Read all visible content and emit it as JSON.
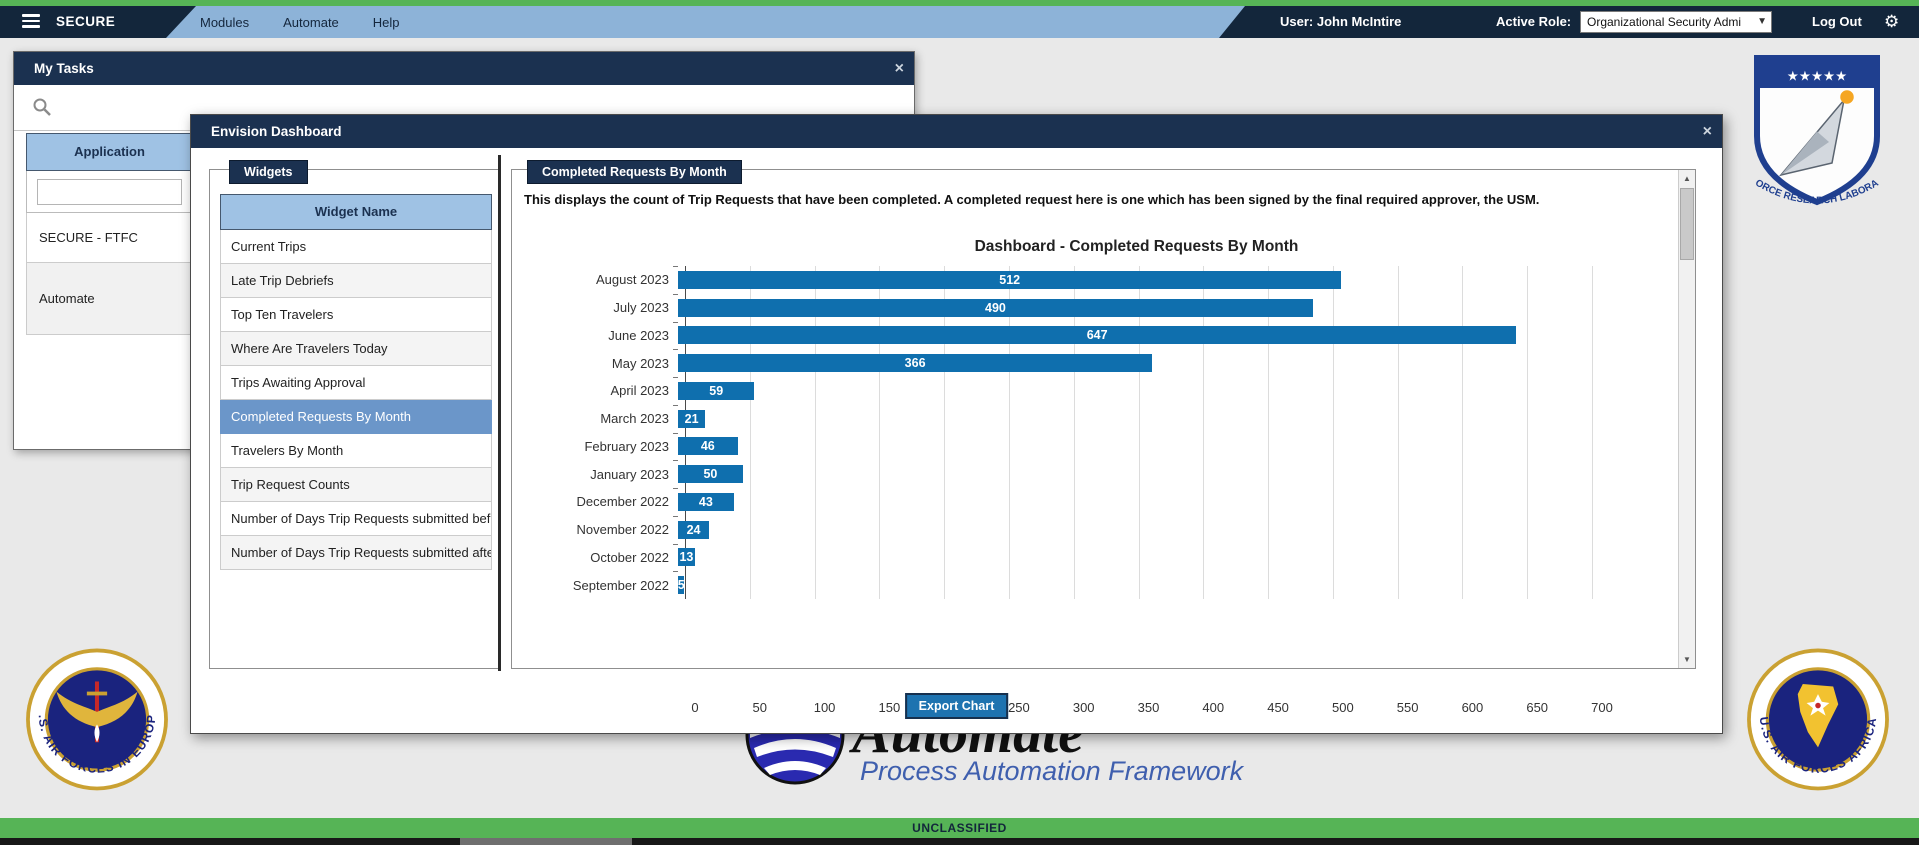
{
  "topbar": {
    "brand": "SECURE",
    "menu": [
      "Modules",
      "Automate",
      "Help"
    ],
    "user_label": "User:",
    "user_name": "John McIntire",
    "role_label": "Active Role:",
    "role_value": "Organizational Security Admi",
    "logout_label": "Log Out"
  },
  "my_tasks": {
    "title": "My Tasks",
    "close": "×",
    "column_header": "Application",
    "filter_value": "",
    "rows": [
      "SECURE - FTFC",
      "Automate"
    ]
  },
  "dashboard_modal": {
    "title": "Envision Dashboard",
    "close": "×",
    "widgets_panel": {
      "label": "Widgets",
      "table_header": "Widget Name",
      "selected": "Completed Requests By Month",
      "items": [
        "Current Trips",
        "Late Trip Debriefs",
        "Top Ten Travelers",
        "Where Are Travelers Today",
        "Trips Awaiting Approval",
        "Completed Requests By Month",
        "Travelers By Month",
        "Trip Request Counts",
        "Number of Days Trip Requests submitted bef",
        "Number of Days Trip Requests submitted afte"
      ]
    },
    "chart_panel": {
      "label": "Completed Requests By Month",
      "description": "This displays the count of Trip Requests that have been completed. A completed request here is one which has been signed by the final required approver, the USM.",
      "export_button": "Export Chart"
    }
  },
  "chart_data": {
    "type": "bar",
    "orientation": "horizontal",
    "title": "Dashboard - Completed Requests By Month",
    "categories": [
      "August 2023",
      "July 2023",
      "June 2023",
      "May 2023",
      "April 2023",
      "March 2023",
      "February 2023",
      "January 2023",
      "December 2022",
      "November 2022",
      "October 2022",
      "September 2022"
    ],
    "values": [
      512,
      490,
      647,
      366,
      59,
      21,
      46,
      50,
      43,
      24,
      13,
      5
    ],
    "xlim": [
      0,
      700
    ],
    "tick_step": 50,
    "bar_color": "#0f6fae",
    "grid": true,
    "value_label_position": "inside-center",
    "legend": "none"
  },
  "footer": {
    "logo_title": "Automate",
    "logo_subtitle": "Process Automation Framework",
    "classification": "UNCLASSIFIED"
  },
  "emblems": {
    "top_right_text": "AIR FORCE RESEARCH LABORATORY",
    "top_right_stars": "★★★★★",
    "bottom_left_text": "U.S. AIR FORCES IN EUROPE",
    "bottom_right_text": "U.S. AIR FORCES AFRICA"
  },
  "colors": {
    "navy_dark": "#13263b",
    "navy_titlebar": "#1b3150",
    "light_blue_header": "#9fc2e4",
    "selected_row": "#6b96c9",
    "green_banner": "#56b456",
    "bar_blue": "#0f6fae",
    "export_blue": "#1e73b0"
  }
}
